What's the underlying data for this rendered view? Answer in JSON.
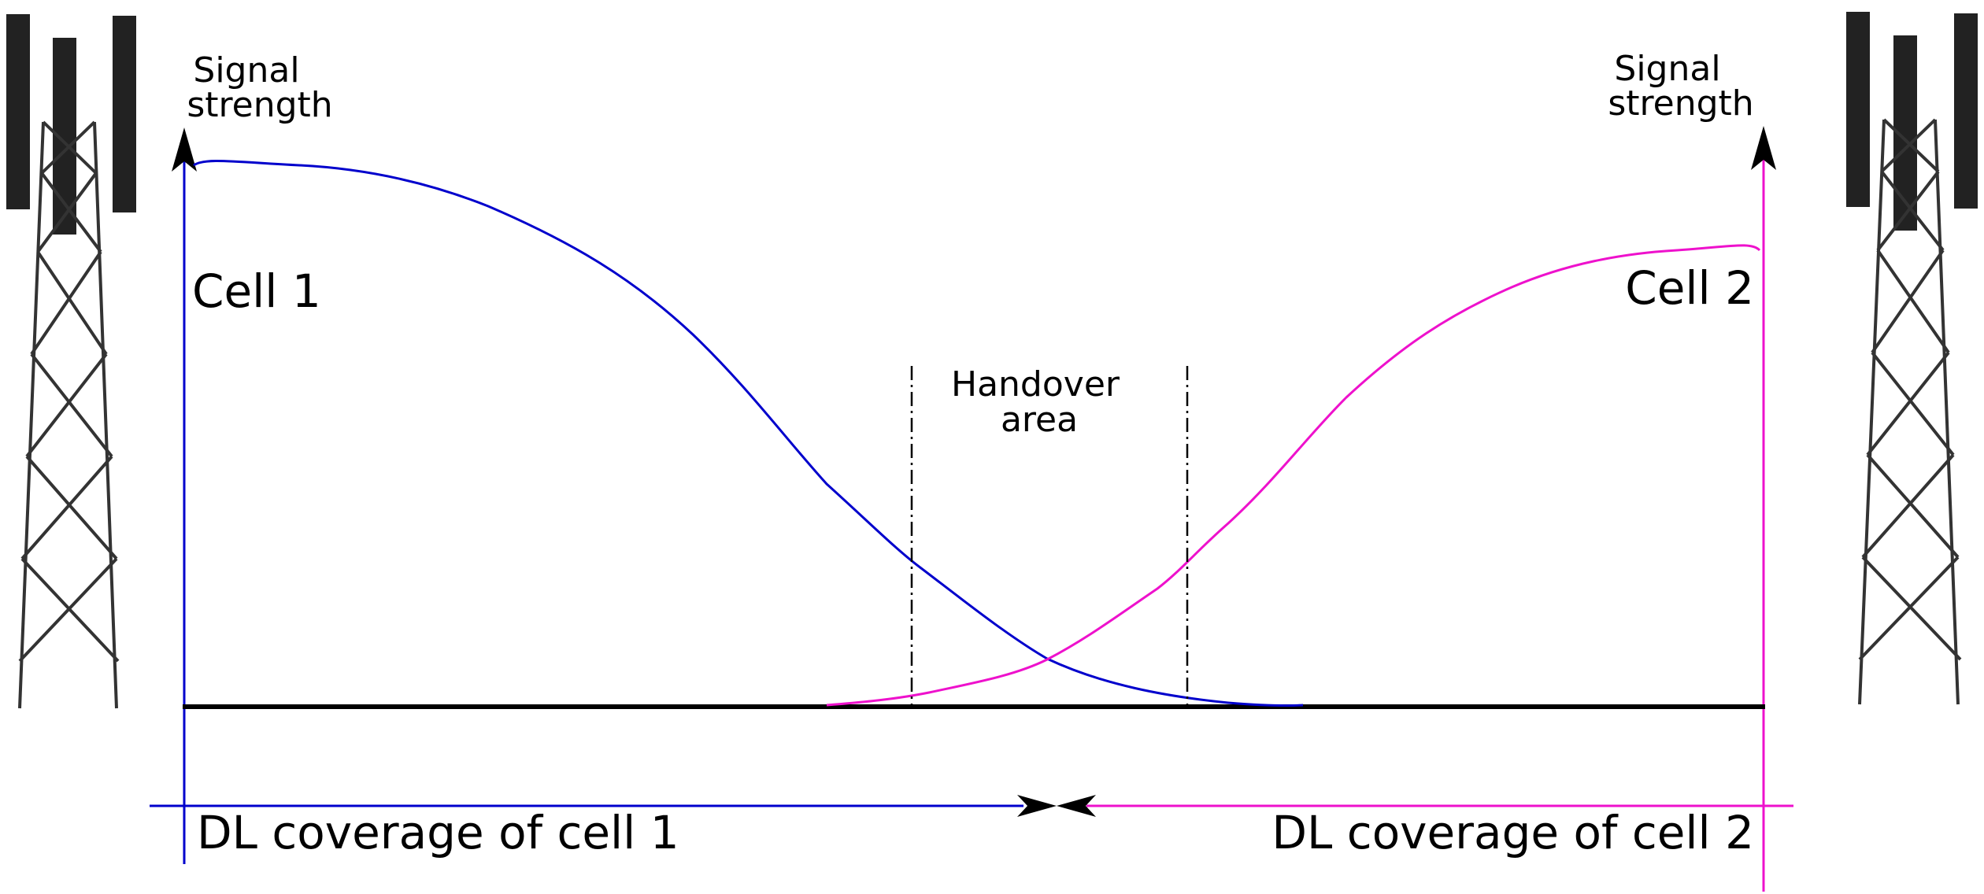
{
  "labels": {
    "signal_strength_left": [
      "Signal",
      "strength"
    ],
    "signal_strength_right": [
      "Signal",
      "strength"
    ],
    "cell1": "Cell 1",
    "cell2": "Cell 2",
    "handover": [
      "Handover",
      "area"
    ],
    "dl_cell1": "DL coverage of cell 1",
    "dl_cell2": "DL coverage of cell 2"
  },
  "colors": {
    "cell1": "#0000cc",
    "cell2": "#ee11cc",
    "axis": "#000000",
    "tower": "#222222"
  },
  "icons": {
    "left_tower": "cell-tower-icon",
    "right_tower": "cell-tower-icon"
  }
}
